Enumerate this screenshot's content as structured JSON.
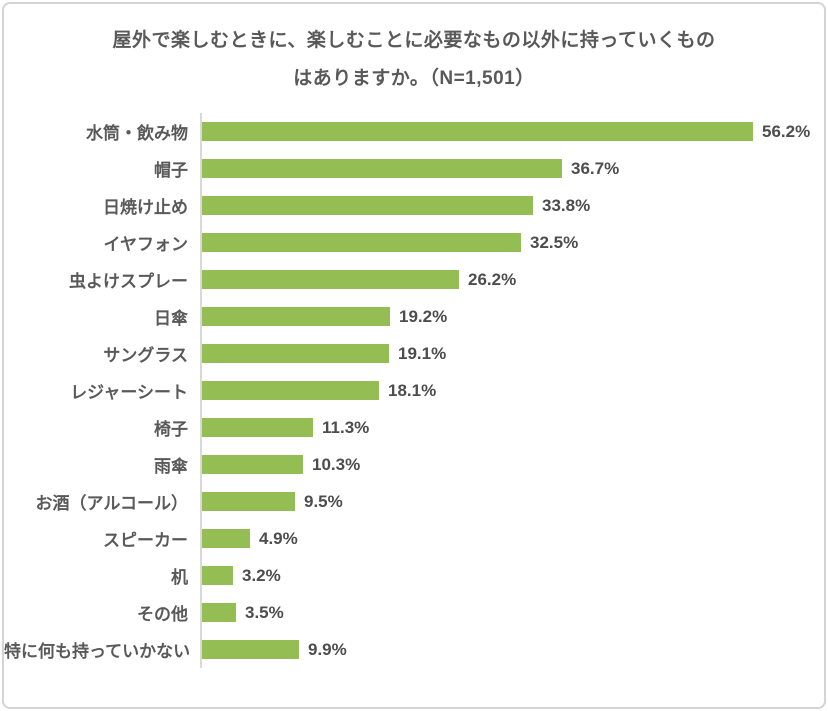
{
  "header": {
    "title_line1": "屋外で楽しむときに、楽しむことに必要なもの以外に持っていくもの",
    "title_line2": "はありますか。（N=1,501）"
  },
  "chart_data": {
    "type": "bar",
    "orientation": "horizontal",
    "title": "屋外で楽しむときに、楽しむことに必要なもの以外に持っていくものはありますか。（N=1,501）",
    "sample_size_label": "N=1,501",
    "categories": [
      "水筒・飲み物",
      "帽子",
      "日焼け止め",
      "イヤフォン",
      "虫よけスプレー",
      "日傘",
      "サングラス",
      "レジャーシート",
      "椅子",
      "雨傘",
      "お酒（アルコール）",
      "スピーカー",
      "机",
      "その他",
      "特に何も持っていかない"
    ],
    "values": [
      56.2,
      36.7,
      33.8,
      32.5,
      26.2,
      19.2,
      19.1,
      18.1,
      11.3,
      10.3,
      9.5,
      4.9,
      3.2,
      3.5,
      9.9
    ],
    "value_labels": [
      "56.2%",
      "36.7%",
      "33.8%",
      "32.5%",
      "26.2%",
      "19.2%",
      "19.1%",
      "18.1%",
      "11.3%",
      "10.3%",
      "9.5%",
      "4.9%",
      "3.2%",
      "3.5%",
      "9.9%"
    ],
    "unit": "%",
    "xlabel": "",
    "ylabel": "",
    "xlim": [
      0,
      60
    ],
    "grid": false,
    "legend": false,
    "data_labels": "outside-end",
    "bar_color": "#94bd53",
    "axis_line_color": "#d9d9d9",
    "text_color": "#595959"
  }
}
